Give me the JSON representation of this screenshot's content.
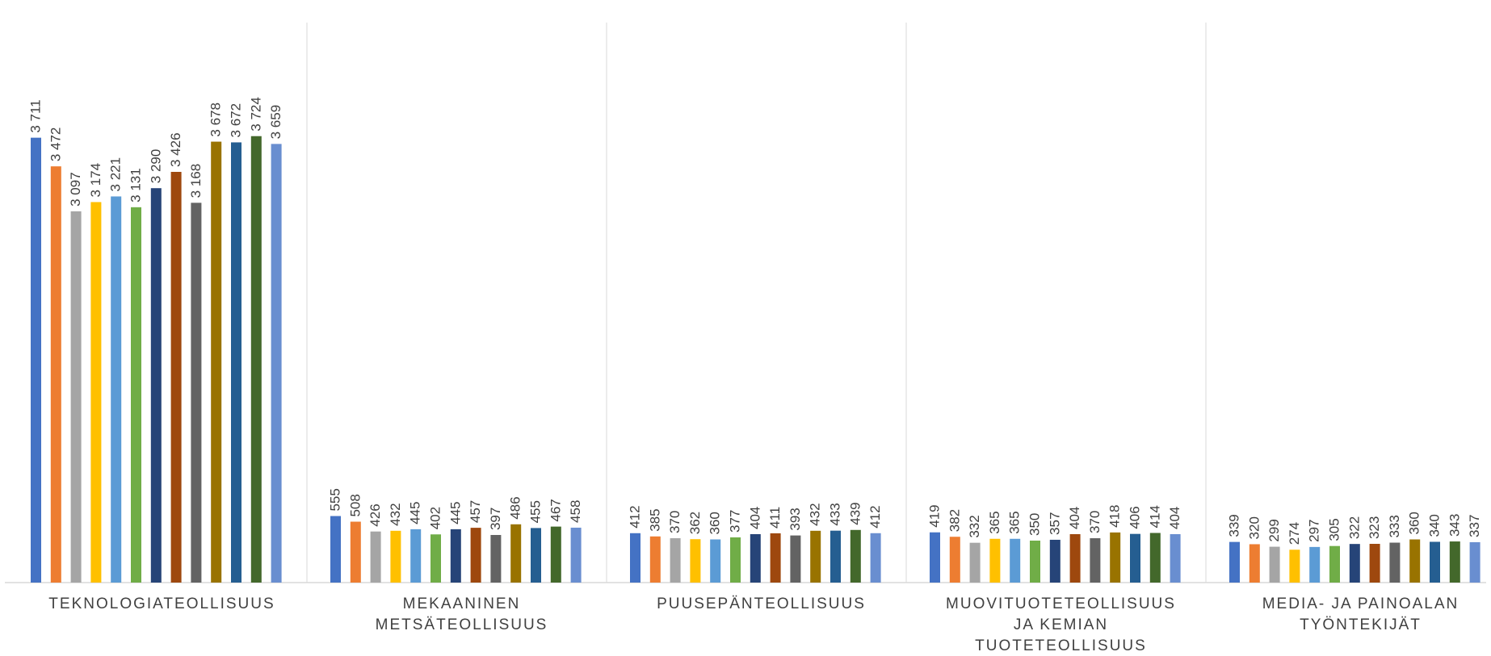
{
  "chart_data": {
    "type": "bar",
    "categories": [
      [
        "TEKNOLOGIATEOLLISUUS"
      ],
      [
        "MEKAANINEN",
        "METSÄTEOLLISUUS"
      ],
      [
        "PUUSEPÄNTEOLLISUUS"
      ],
      [
        "MUOVITUOTETEOLLISUUS",
        "JA KEMIAN",
        "TUOTETEOLLISUUS"
      ],
      [
        "MEDIA- JA PAINOALAN",
        "TYÖNTEKIJÄT"
      ]
    ],
    "series_colors": [
      "#4472c4",
      "#ed7d31",
      "#a5a5a5",
      "#ffc000",
      "#5b9bd5",
      "#70ad47",
      "#264478",
      "#9e480e",
      "#636363",
      "#997300",
      "#255e91",
      "#43682b",
      "#698ed0"
    ],
    "values": [
      [
        3711,
        3472,
        3097,
        3174,
        3221,
        3131,
        3290,
        3426,
        3168,
        3678,
        3672,
        3724,
        3659
      ],
      [
        555,
        508,
        426,
        432,
        445,
        402,
        445,
        457,
        397,
        486,
        455,
        467,
        458
      ],
      [
        412,
        385,
        370,
        362,
        360,
        377,
        404,
        411,
        393,
        432,
        433,
        439,
        412
      ],
      [
        419,
        382,
        332,
        365,
        365,
        350,
        357,
        404,
        370,
        418,
        406,
        414,
        404
      ],
      [
        339,
        320,
        299,
        274,
        297,
        305,
        322,
        323,
        333,
        360,
        340,
        343,
        337
      ]
    ],
    "data_labels": [
      [
        "3 711",
        "3 472",
        "3 097",
        "3 174",
        "3 221",
        "3 131",
        "3 290",
        "3 426",
        "3 168",
        "3 678",
        "3 672",
        "3 724",
        "3 659"
      ],
      [
        "555",
        "508",
        "426",
        "432",
        "445",
        "402",
        "445",
        "457",
        "397",
        "486",
        "455",
        "467",
        "458"
      ],
      [
        "412",
        "385",
        "370",
        "362",
        "360",
        "377",
        "404",
        "411",
        "393",
        "432",
        "433",
        "439",
        "412"
      ],
      [
        "419",
        "382",
        "332",
        "365",
        "365",
        "350",
        "357",
        "404",
        "370",
        "418",
        "406",
        "414",
        "404"
      ],
      [
        "339",
        "320",
        "299",
        "274",
        "297",
        "305",
        "322",
        "323",
        "333",
        "360",
        "340",
        "343",
        "337"
      ]
    ],
    "ylim": [
      0,
      4000
    ],
    "grid": "vertical separators between categories",
    "legend": "none"
  }
}
